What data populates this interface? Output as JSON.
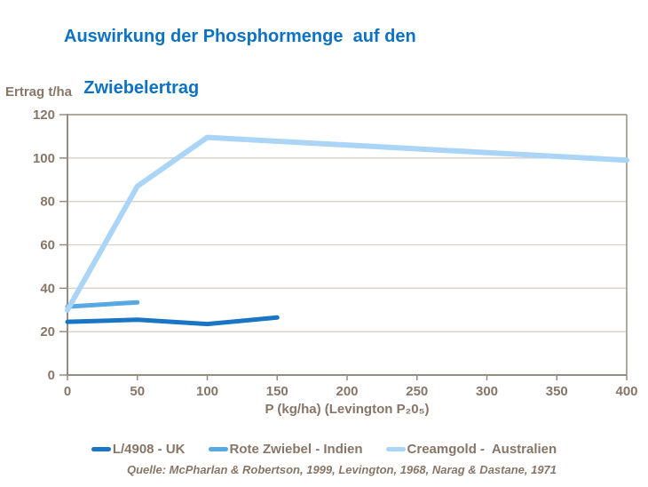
{
  "title": {
    "line1": "Auswirkung der Phosphormenge  auf den",
    "line2": "Zwiebelertrag"
  },
  "source": "Quelle: McPharlan & Robertson, 1999, Levington, 1968, Narag & Dastane, 1971",
  "colors": {
    "title": "#0e72c4",
    "text": "#877668",
    "axis": "#968d80",
    "grid": "#d7d1c7",
    "background": "#ffffff"
  },
  "chart_data": {
    "type": "line",
    "title": "Auswirkung der Phosphormenge auf den Zwiebelertrag",
    "xlabel": "P (kg/ha) (Levington P₂0₅)",
    "ylabel": "Ertrag t/ha",
    "xlim": [
      0,
      400
    ],
    "ylim": [
      0,
      120
    ],
    "x_ticks": [
      0,
      50,
      100,
      150,
      200,
      250,
      300,
      350,
      400
    ],
    "y_ticks": [
      0,
      20,
      40,
      60,
      80,
      100,
      120
    ],
    "grid": "horizontal",
    "legend_position": "bottom",
    "series": [
      {
        "name": "L/4908 - UK",
        "color": "#1a75c4",
        "x": [
          0,
          50,
          100,
          150
        ],
        "y": [
          24.5,
          25.5,
          23.5,
          26.5
        ]
      },
      {
        "name": "Rote Zwiebel - Indien",
        "color": "#56a9e2",
        "x": [
          0,
          50
        ],
        "y": [
          31.5,
          33.5
        ]
      },
      {
        "name": "Creamgold -  Australien",
        "color": "#abd5f6",
        "x": [
          0,
          50,
          100,
          400
        ],
        "y": [
          30,
          87,
          109.5,
          99
        ]
      }
    ]
  }
}
